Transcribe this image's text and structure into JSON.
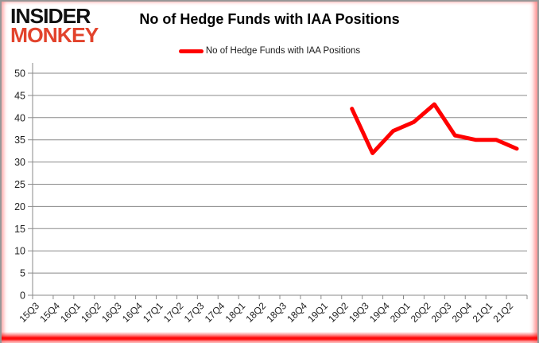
{
  "header": {
    "logo_line1": "INSIDER",
    "logo_line2": "MONKEY",
    "title": "No of Hedge Funds with IAA Positions"
  },
  "legend": {
    "label": "No of Hedge Funds with IAA Positions",
    "swatch_color": "#ff0000"
  },
  "chart_data": {
    "type": "line",
    "title": "No of Hedge Funds with IAA Positions",
    "categories": [
      "15Q3",
      "15Q4",
      "16Q1",
      "16Q2",
      "16Q3",
      "16Q4",
      "17Q1",
      "17Q2",
      "17Q3",
      "17Q4",
      "18Q1",
      "18Q2",
      "18Q3",
      "18Q4",
      "19Q1",
      "19Q2",
      "19Q3",
      "19Q4",
      "20Q1",
      "20Q2",
      "20Q3",
      "20Q4",
      "21Q1",
      "21Q2"
    ],
    "series": [
      {
        "name": "No of Hedge Funds with IAA Positions",
        "color": "#ff0000",
        "values": [
          null,
          null,
          null,
          null,
          null,
          null,
          null,
          null,
          null,
          null,
          null,
          null,
          null,
          null,
          null,
          42,
          32,
          37,
          39,
          43,
          36,
          35,
          35,
          33
        ]
      }
    ],
    "ylim": [
      0,
      50
    ],
    "yticks": [
      0,
      5,
      10,
      15,
      20,
      25,
      30,
      35,
      40,
      45,
      50
    ],
    "grid": "horizontal",
    "legend_position": "top",
    "xlabel": "",
    "ylabel": ""
  },
  "colors": {
    "grid": "#8a8a8a",
    "axis": "#8a8a8a",
    "tick_text": "#1f1f1f"
  }
}
